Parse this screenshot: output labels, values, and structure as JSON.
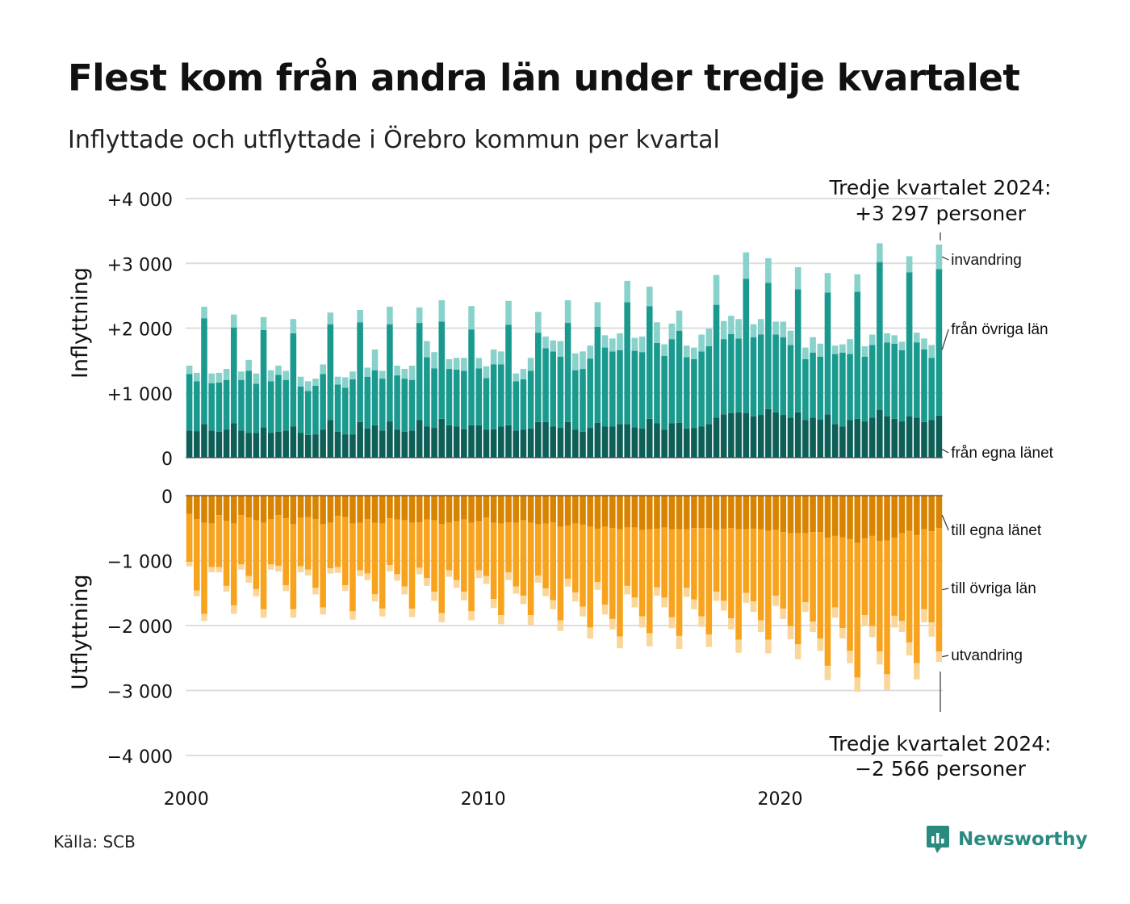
{
  "title": "Flest kom från andra län under tredje kvartalet",
  "subtitle": "Inflyttade och utflyttade i Örebro kommun per kvartal",
  "source": "Källa: SCB",
  "brand": "Newsworthy",
  "colors": {
    "in_own": "#0e5f58",
    "in_other": "#1a9a8e",
    "in_immigration": "#88d2cb",
    "out_own": "#d98400",
    "out_other": "#f8a31d",
    "out_emigration": "#fbd699",
    "brand": "#2a8a80",
    "grid": "#dddddd"
  },
  "callouts": {
    "top_line1": "Tredje kvartalet 2024:",
    "top_line2": "+3 297 personer",
    "bottom_line1": "Tredje kvartalet 2024:",
    "bottom_line2": "−2 566 personer"
  },
  "chart_data": [
    {
      "type": "bar",
      "stacked": true,
      "ylabel": "Inflyttning",
      "ylim": [
        0,
        4000
      ],
      "yticks": [
        0,
        1000,
        2000,
        3000,
        4000
      ],
      "ytick_labels": [
        "0",
        "+1 000",
        "+2 000",
        "+3 000",
        "+4 000"
      ],
      "x_start": "2000 Q1",
      "x_end": "2024 Q3",
      "xticks": [
        2000,
        2010,
        2020
      ],
      "series": [
        {
          "name": "från egna länet",
          "values": [
            420,
            410,
            520,
            420,
            400,
            430,
            530,
            420,
            380,
            380,
            470,
            380,
            400,
            420,
            480,
            380,
            350,
            360,
            430,
            580,
            400,
            360,
            360,
            550,
            450,
            500,
            420,
            560,
            430,
            400,
            420,
            580,
            480,
            460,
            600,
            500,
            480,
            440,
            500,
            500,
            430,
            440,
            480,
            500,
            420,
            430,
            450,
            550,
            550,
            480,
            460,
            550,
            430,
            400,
            460,
            540,
            480,
            480,
            520,
            520,
            470,
            450,
            600,
            530,
            430,
            530,
            540,
            450,
            460,
            480,
            520,
            620,
            670,
            690,
            700,
            690,
            640,
            660,
            750,
            700,
            660,
            620,
            700,
            580,
            620,
            590,
            670,
            520,
            480,
            580,
            600,
            560,
            620,
            740,
            640,
            600,
            560,
            640,
            620,
            550,
            580,
            650
          ]
        },
        {
          "name": "från övriga län",
          "values": [
            870,
            770,
            1630,
            730,
            760,
            770,
            1480,
            780,
            960,
            760,
            1500,
            800,
            880,
            780,
            1440,
            720,
            680,
            750,
            860,
            1480,
            730,
            720,
            850,
            1540,
            800,
            850,
            800,
            1500,
            840,
            820,
            780,
            1500,
            1070,
            920,
            1500,
            870,
            880,
            900,
            1480,
            880,
            800,
            1000,
            960,
            1550,
            760,
            780,
            890,
            1380,
            1140,
            1160,
            1100,
            1530,
            920,
            970,
            1070,
            1480,
            1220,
            1160,
            1140,
            1880,
            1180,
            1180,
            1740,
            1240,
            1140,
            1300,
            1420,
            1100,
            1060,
            1160,
            1200,
            1740,
            1160,
            1220,
            1140,
            2070,
            1220,
            1240,
            1950,
            1200,
            1200,
            1120,
            1900,
            940,
            1000,
            970,
            1880,
            1080,
            1140,
            1020,
            1960,
            1000,
            1120,
            2280,
            1140,
            1160,
            1100,
            2220,
            1160,
            1120,
            960,
            2260
          ]
        },
        {
          "name": "invandring",
          "values": [
            130,
            130,
            180,
            150,
            150,
            170,
            200,
            130,
            170,
            160,
            200,
            170,
            140,
            140,
            220,
            150,
            150,
            110,
            150,
            180,
            120,
            160,
            120,
            190,
            140,
            320,
            120,
            270,
            150,
            150,
            220,
            240,
            250,
            250,
            330,
            150,
            180,
            200,
            360,
            160,
            180,
            230,
            200,
            370,
            120,
            160,
            200,
            320,
            180,
            170,
            240,
            350,
            260,
            270,
            200,
            380,
            190,
            200,
            260,
            330,
            200,
            240,
            300,
            320,
            180,
            240,
            310,
            180,
            180,
            260,
            270,
            460,
            280,
            280,
            300,
            410,
            200,
            240,
            380,
            200,
            240,
            220,
            340,
            180,
            240,
            200,
            300,
            130,
            130,
            230,
            270,
            160,
            160,
            290,
            140,
            130,
            130,
            250,
            150,
            170,
            200,
            380
          ]
        }
      ]
    },
    {
      "type": "bar",
      "stacked": true,
      "ylabel": "Utflyttning",
      "ylim": [
        -4000,
        0
      ],
      "yticks": [
        0,
        -1000,
        -2000,
        -3000,
        -4000
      ],
      "ytick_labels": [
        "0",
        "−1 000",
        "−2 000",
        "−3 000",
        "−4 000"
      ],
      "x_start": "2000 Q1",
      "x_end": "2024 Q3",
      "xticks": [
        2000,
        2010,
        2020
      ],
      "series": [
        {
          "name": "till egna länet",
          "values": [
            -280,
            -360,
            -420,
            -430,
            -300,
            -390,
            -430,
            -300,
            -340,
            -380,
            -420,
            -360,
            -300,
            -350,
            -440,
            -340,
            -330,
            -360,
            -440,
            -420,
            -310,
            -330,
            -430,
            -420,
            -360,
            -420,
            -430,
            -350,
            -370,
            -380,
            -420,
            -410,
            -370,
            -380,
            -440,
            -420,
            -400,
            -370,
            -420,
            -400,
            -340,
            -420,
            -430,
            -410,
            -420,
            -380,
            -420,
            -440,
            -430,
            -410,
            -480,
            -460,
            -430,
            -450,
            -480,
            -510,
            -480,
            -500,
            -520,
            -490,
            -490,
            -530,
            -520,
            -510,
            -490,
            -520,
            -520,
            -520,
            -500,
            -500,
            -500,
            -530,
            -510,
            -500,
            -520,
            -520,
            -510,
            -520,
            -540,
            -530,
            -560,
            -580,
            -580,
            -580,
            -560,
            -560,
            -650,
            -620,
            -640,
            -670,
            -730,
            -660,
            -620,
            -700,
            -690,
            -650,
            -580,
            -540,
            -610,
            -520,
            -550,
            -500
          ]
        },
        {
          "name": "till övriga län",
          "values": [
            -740,
            -1100,
            -1400,
            -670,
            -800,
            -1000,
            -1260,
            -760,
            -900,
            -1060,
            -1330,
            -700,
            -780,
            -1030,
            -1310,
            -750,
            -810,
            -1060,
            -1280,
            -700,
            -790,
            -1050,
            -1350,
            -730,
            -840,
            -1100,
            -1310,
            -720,
            -840,
            -1020,
            -1320,
            -700,
            -900,
            -1100,
            -1370,
            -730,
            -900,
            -1110,
            -1360,
            -750,
            -900,
            -1170,
            -1410,
            -770,
            -980,
            -1160,
            -1420,
            -790,
            -1000,
            -1200,
            -1440,
            -820,
            -1060,
            -1260,
            -1550,
            -820,
            -1200,
            -1400,
            -1650,
            -900,
            -1080,
            -1330,
            -1600,
            -900,
            -1080,
            -1350,
            -1640,
            -900,
            -1100,
            -1360,
            -1640,
            -950,
            -1110,
            -1390,
            -1700,
            -980,
            -1120,
            -1400,
            -1680,
            -1010,
            -1180,
            -1430,
            -1710,
            -1060,
            -1380,
            -1640,
            -1970,
            -1100,
            -1400,
            -1720,
            -2070,
            -1180,
            -1390,
            -1700,
            -2060,
            -1200,
            -1350,
            -1720,
            -1970,
            -1230,
            -1400,
            -1900
          ]
        },
        {
          "name": "utvandring",
          "values": [
            -70,
            -90,
            -110,
            -80,
            -80,
            -90,
            -130,
            -80,
            -100,
            -110,
            -130,
            -80,
            -90,
            -90,
            -130,
            -90,
            -90,
            -100,
            -110,
            -80,
            -90,
            -90,
            -130,
            -90,
            -100,
            -110,
            -120,
            -100,
            -100,
            -120,
            -130,
            -100,
            -120,
            -140,
            -140,
            -100,
            -120,
            -130,
            -140,
            -120,
            -120,
            -140,
            -140,
            -120,
            -110,
            -130,
            -150,
            -110,
            -120,
            -140,
            -160,
            -120,
            -140,
            -150,
            -170,
            -120,
            -150,
            -160,
            -180,
            -130,
            -150,
            -170,
            -200,
            -130,
            -150,
            -170,
            -200,
            -140,
            -150,
            -160,
            -190,
            -140,
            -150,
            -170,
            -200,
            -150,
            -160,
            -180,
            -210,
            -160,
            -160,
            -200,
            -230,
            -150,
            -160,
            -190,
            -220,
            -160,
            -160,
            -190,
            -220,
            -170,
            -170,
            -200,
            -240,
            -180,
            -170,
            -200,
            -250,
            -200,
            -220,
            -160
          ]
        }
      ]
    }
  ]
}
